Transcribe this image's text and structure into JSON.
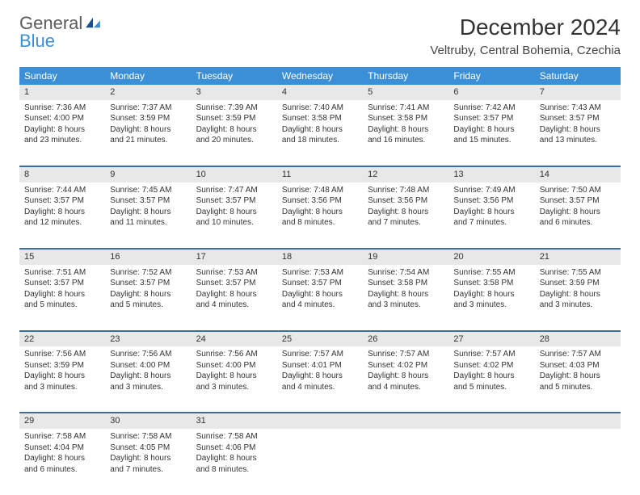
{
  "brand": {
    "general": "General",
    "blue": "Blue"
  },
  "title": "December 2024",
  "location": "Veltruby, Central Bohemia, Czechia",
  "colors": {
    "header_bg": "#3b8fd6",
    "header_text": "#ffffff",
    "daynum_bg": "#e8e8e8",
    "row_divider": "#3b6fa0",
    "text": "#333333",
    "logo_gray": "#5a5a5a",
    "logo_blue": "#3b8fd6",
    "page_bg": "#ffffff"
  },
  "typography": {
    "title_fontsize": 28,
    "location_fontsize": 15,
    "weekday_fontsize": 12,
    "daynum_fontsize": 11,
    "cell_fontsize": 10
  },
  "weekdays": [
    "Sunday",
    "Monday",
    "Tuesday",
    "Wednesday",
    "Thursday",
    "Friday",
    "Saturday"
  ],
  "weeks": [
    [
      {
        "n": "1",
        "sr": "Sunrise: 7:36 AM",
        "ss": "Sunset: 4:00 PM",
        "d1": "Daylight: 8 hours",
        "d2": "and 23 minutes."
      },
      {
        "n": "2",
        "sr": "Sunrise: 7:37 AM",
        "ss": "Sunset: 3:59 PM",
        "d1": "Daylight: 8 hours",
        "d2": "and 21 minutes."
      },
      {
        "n": "3",
        "sr": "Sunrise: 7:39 AM",
        "ss": "Sunset: 3:59 PM",
        "d1": "Daylight: 8 hours",
        "d2": "and 20 minutes."
      },
      {
        "n": "4",
        "sr": "Sunrise: 7:40 AM",
        "ss": "Sunset: 3:58 PM",
        "d1": "Daylight: 8 hours",
        "d2": "and 18 minutes."
      },
      {
        "n": "5",
        "sr": "Sunrise: 7:41 AM",
        "ss": "Sunset: 3:58 PM",
        "d1": "Daylight: 8 hours",
        "d2": "and 16 minutes."
      },
      {
        "n": "6",
        "sr": "Sunrise: 7:42 AM",
        "ss": "Sunset: 3:57 PM",
        "d1": "Daylight: 8 hours",
        "d2": "and 15 minutes."
      },
      {
        "n": "7",
        "sr": "Sunrise: 7:43 AM",
        "ss": "Sunset: 3:57 PM",
        "d1": "Daylight: 8 hours",
        "d2": "and 13 minutes."
      }
    ],
    [
      {
        "n": "8",
        "sr": "Sunrise: 7:44 AM",
        "ss": "Sunset: 3:57 PM",
        "d1": "Daylight: 8 hours",
        "d2": "and 12 minutes."
      },
      {
        "n": "9",
        "sr": "Sunrise: 7:45 AM",
        "ss": "Sunset: 3:57 PM",
        "d1": "Daylight: 8 hours",
        "d2": "and 11 minutes."
      },
      {
        "n": "10",
        "sr": "Sunrise: 7:47 AM",
        "ss": "Sunset: 3:57 PM",
        "d1": "Daylight: 8 hours",
        "d2": "and 10 minutes."
      },
      {
        "n": "11",
        "sr": "Sunrise: 7:48 AM",
        "ss": "Sunset: 3:56 PM",
        "d1": "Daylight: 8 hours",
        "d2": "and 8 minutes."
      },
      {
        "n": "12",
        "sr": "Sunrise: 7:48 AM",
        "ss": "Sunset: 3:56 PM",
        "d1": "Daylight: 8 hours",
        "d2": "and 7 minutes."
      },
      {
        "n": "13",
        "sr": "Sunrise: 7:49 AM",
        "ss": "Sunset: 3:56 PM",
        "d1": "Daylight: 8 hours",
        "d2": "and 7 minutes."
      },
      {
        "n": "14",
        "sr": "Sunrise: 7:50 AM",
        "ss": "Sunset: 3:57 PM",
        "d1": "Daylight: 8 hours",
        "d2": "and 6 minutes."
      }
    ],
    [
      {
        "n": "15",
        "sr": "Sunrise: 7:51 AM",
        "ss": "Sunset: 3:57 PM",
        "d1": "Daylight: 8 hours",
        "d2": "and 5 minutes."
      },
      {
        "n": "16",
        "sr": "Sunrise: 7:52 AM",
        "ss": "Sunset: 3:57 PM",
        "d1": "Daylight: 8 hours",
        "d2": "and 5 minutes."
      },
      {
        "n": "17",
        "sr": "Sunrise: 7:53 AM",
        "ss": "Sunset: 3:57 PM",
        "d1": "Daylight: 8 hours",
        "d2": "and 4 minutes."
      },
      {
        "n": "18",
        "sr": "Sunrise: 7:53 AM",
        "ss": "Sunset: 3:57 PM",
        "d1": "Daylight: 8 hours",
        "d2": "and 4 minutes."
      },
      {
        "n": "19",
        "sr": "Sunrise: 7:54 AM",
        "ss": "Sunset: 3:58 PM",
        "d1": "Daylight: 8 hours",
        "d2": "and 3 minutes."
      },
      {
        "n": "20",
        "sr": "Sunrise: 7:55 AM",
        "ss": "Sunset: 3:58 PM",
        "d1": "Daylight: 8 hours",
        "d2": "and 3 minutes."
      },
      {
        "n": "21",
        "sr": "Sunrise: 7:55 AM",
        "ss": "Sunset: 3:59 PM",
        "d1": "Daylight: 8 hours",
        "d2": "and 3 minutes."
      }
    ],
    [
      {
        "n": "22",
        "sr": "Sunrise: 7:56 AM",
        "ss": "Sunset: 3:59 PM",
        "d1": "Daylight: 8 hours",
        "d2": "and 3 minutes."
      },
      {
        "n": "23",
        "sr": "Sunrise: 7:56 AM",
        "ss": "Sunset: 4:00 PM",
        "d1": "Daylight: 8 hours",
        "d2": "and 3 minutes."
      },
      {
        "n": "24",
        "sr": "Sunrise: 7:56 AM",
        "ss": "Sunset: 4:00 PM",
        "d1": "Daylight: 8 hours",
        "d2": "and 3 minutes."
      },
      {
        "n": "25",
        "sr": "Sunrise: 7:57 AM",
        "ss": "Sunset: 4:01 PM",
        "d1": "Daylight: 8 hours",
        "d2": "and 4 minutes."
      },
      {
        "n": "26",
        "sr": "Sunrise: 7:57 AM",
        "ss": "Sunset: 4:02 PM",
        "d1": "Daylight: 8 hours",
        "d2": "and 4 minutes."
      },
      {
        "n": "27",
        "sr": "Sunrise: 7:57 AM",
        "ss": "Sunset: 4:02 PM",
        "d1": "Daylight: 8 hours",
        "d2": "and 5 minutes."
      },
      {
        "n": "28",
        "sr": "Sunrise: 7:57 AM",
        "ss": "Sunset: 4:03 PM",
        "d1": "Daylight: 8 hours",
        "d2": "and 5 minutes."
      }
    ],
    [
      {
        "n": "29",
        "sr": "Sunrise: 7:58 AM",
        "ss": "Sunset: 4:04 PM",
        "d1": "Daylight: 8 hours",
        "d2": "and 6 minutes."
      },
      {
        "n": "30",
        "sr": "Sunrise: 7:58 AM",
        "ss": "Sunset: 4:05 PM",
        "d1": "Daylight: 8 hours",
        "d2": "and 7 minutes."
      },
      {
        "n": "31",
        "sr": "Sunrise: 7:58 AM",
        "ss": "Sunset: 4:06 PM",
        "d1": "Daylight: 8 hours",
        "d2": "and 8 minutes."
      },
      null,
      null,
      null,
      null
    ]
  ]
}
